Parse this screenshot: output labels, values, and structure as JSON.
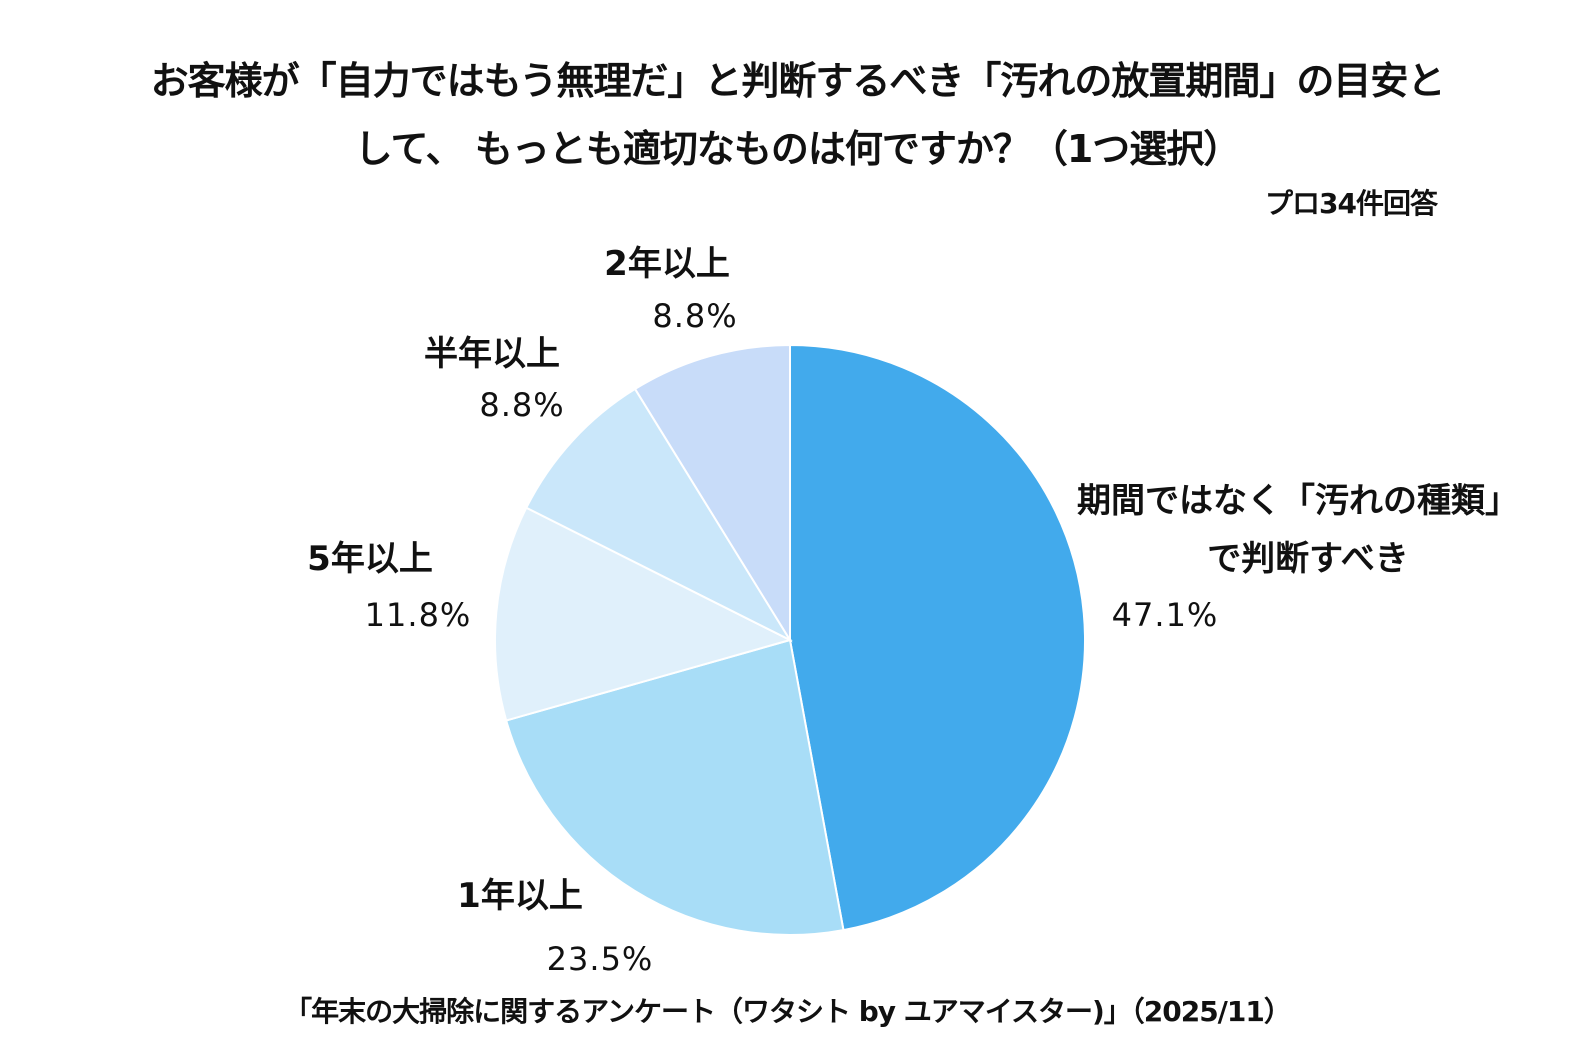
{
  "chart_data": {
    "type": "pie",
    "title": "お客様が「自力ではもう無理だ」と判断するべき「汚れの放置期間」の目安として、もっとも適切なものは何ですか？（1つ選択）",
    "title_lines": [
      "お客様が「自力ではもう無理だ」と判断するべき「汚れの放置期間」の目安と",
      "して、 もっとも適切なものは何ですか？（1つ選択）"
    ],
    "subtitle": "プロ34件回答",
    "source": "「年末の大掃除に関するアンケート（ワタシト by ユアマイスター)」（2025/11）",
    "start_angle": "12 o'clock",
    "direction": "clockwise",
    "slices": [
      {
        "label": "期間ではなく「汚れの種類」で判断すべき",
        "label_lines": [
          "期間ではなく「汚れの種類」",
          "で判断すべき"
        ],
        "value": 47.1,
        "value_label": "47.1%",
        "color": "#42AAEC"
      },
      {
        "label": "1年以上",
        "label_lines": [
          "1年以上"
        ],
        "value": 23.5,
        "value_label": "23.5%",
        "color": "#A8DDF7"
      },
      {
        "label": "5年以上",
        "label_lines": [
          "5年以上"
        ],
        "value": 11.8,
        "value_label": "11.8%",
        "color": "#E0F0FB"
      },
      {
        "label": "半年以上",
        "label_lines": [
          "半年以上"
        ],
        "value": 8.8,
        "value_label": "8.8%",
        "color": "#CAE7FA"
      },
      {
        "label": "2年以上",
        "label_lines": [
          "2年以上"
        ],
        "value": 8.8,
        "value_label": "8.8%",
        "color": "#C8DCF9"
      }
    ]
  }
}
